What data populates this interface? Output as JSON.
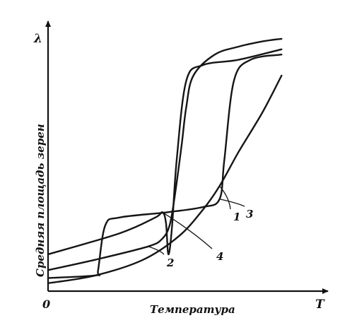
{
  "chart_data": {
    "type": "line",
    "y_axis_symbol": "λ",
    "x_axis_symbol": "T",
    "origin_label": "0",
    "xlabel": "Температура",
    "ylabel": "Средняя площадь зерен",
    "xlim": [
      0,
      100
    ],
    "ylim": [
      0,
      100
    ],
    "grid": false,
    "legend": "none",
    "series": [
      {
        "name": "1",
        "x": [
          0,
          20,
          40,
          55,
          65,
          72,
          80,
          90,
          98
        ],
        "y": [
          3,
          6,
          12,
          21,
          31,
          40,
          53,
          68,
          82
        ]
      },
      {
        "name": "2",
        "x": [
          0,
          20,
          42,
          48,
          51,
          53,
          56,
          58,
          61,
          70,
          80,
          90,
          98
        ],
        "y": [
          8,
          12,
          17,
          20,
          25,
          35,
          55,
          70,
          82,
          90,
          93,
          95,
          96
        ]
      },
      {
        "name": "3",
        "x": [
          0,
          20,
          21,
          24,
          30,
          50,
          65,
          72,
          74,
          78,
          85,
          98
        ],
        "y": [
          5,
          6,
          8,
          25,
          28,
          30,
          32,
          35,
          50,
          80,
          88,
          90
        ]
      },
      {
        "name": "4",
        "x": [
          0,
          30,
          45,
          48,
          49.5,
          50.5,
          52,
          54,
          58,
          65,
          80,
          98
        ],
        "y": [
          14,
          22,
          28,
          30,
          26,
          14,
          24,
          50,
          80,
          86,
          88,
          92
        ]
      }
    ],
    "annotations": [
      {
        "text": "1",
        "series": "1"
      },
      {
        "text": "2",
        "series": "2"
      },
      {
        "text": "3",
        "series": "3"
      },
      {
        "text": "4",
        "series": "4"
      }
    ]
  }
}
